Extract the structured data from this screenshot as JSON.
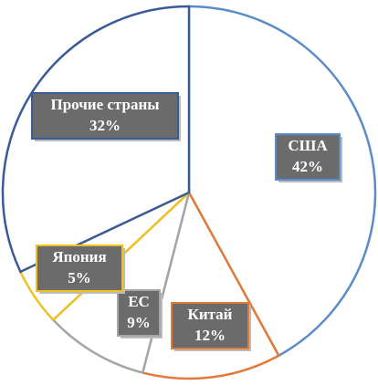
{
  "chart_data": {
    "type": "pie",
    "categories": [
      "США",
      "Китай",
      "ЕС",
      "Япония",
      "Прочие страны"
    ],
    "values": [
      42,
      12,
      9,
      5,
      32
    ],
    "value_labels": [
      "42%",
      "12%",
      "9%",
      "5%",
      "32%"
    ],
    "colors": [
      "#5b8bc9",
      "#e07b39",
      "#a5a5a5",
      "#f0c020",
      "#3a5a98"
    ]
  }
}
